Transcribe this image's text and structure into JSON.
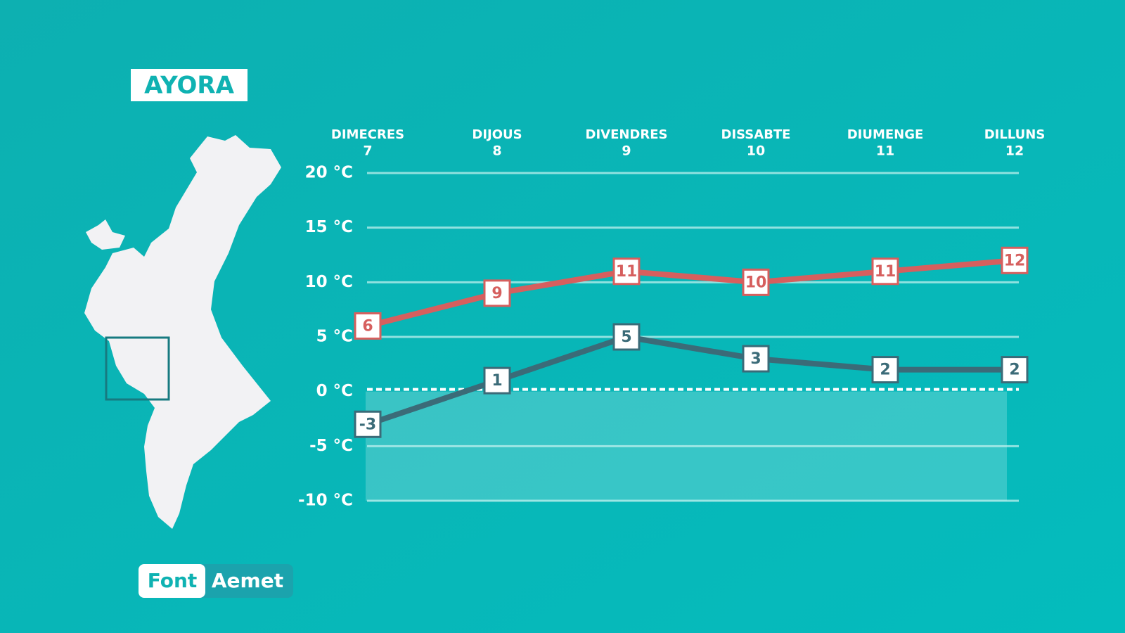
{
  "title": "AYORA",
  "source": {
    "label": "Font",
    "value": "Aemet"
  },
  "chart_data": {
    "type": "line",
    "categories": [
      "DIMECRES",
      "DIJOUS",
      "DIVENDRES",
      "DISSABTE",
      "DIUMENGE",
      "DILLUNS"
    ],
    "days": [
      7,
      8,
      9,
      10,
      11,
      12
    ],
    "series": [
      {
        "color": "#d65f5e",
        "values": [
          6,
          9,
          11,
          10,
          11,
          12
        ]
      },
      {
        "color": "#3b6b78",
        "values": [
          -3,
          1,
          5,
          3,
          2,
          2
        ]
      }
    ],
    "ylim": [
      -10,
      20
    ],
    "yticks": [
      {
        "value": -10,
        "label": "-10 °C"
      },
      {
        "value": -5,
        "label": "-5 °C"
      },
      {
        "value": 0,
        "label": "0 °C"
      },
      {
        "value": 5,
        "label": "5 °C"
      },
      {
        "value": 10,
        "label": "10 °C"
      },
      {
        "value": 15,
        "label": "15 °C"
      },
      {
        "value": 20,
        "label": "20 °C"
      }
    ],
    "grid": true
  }
}
